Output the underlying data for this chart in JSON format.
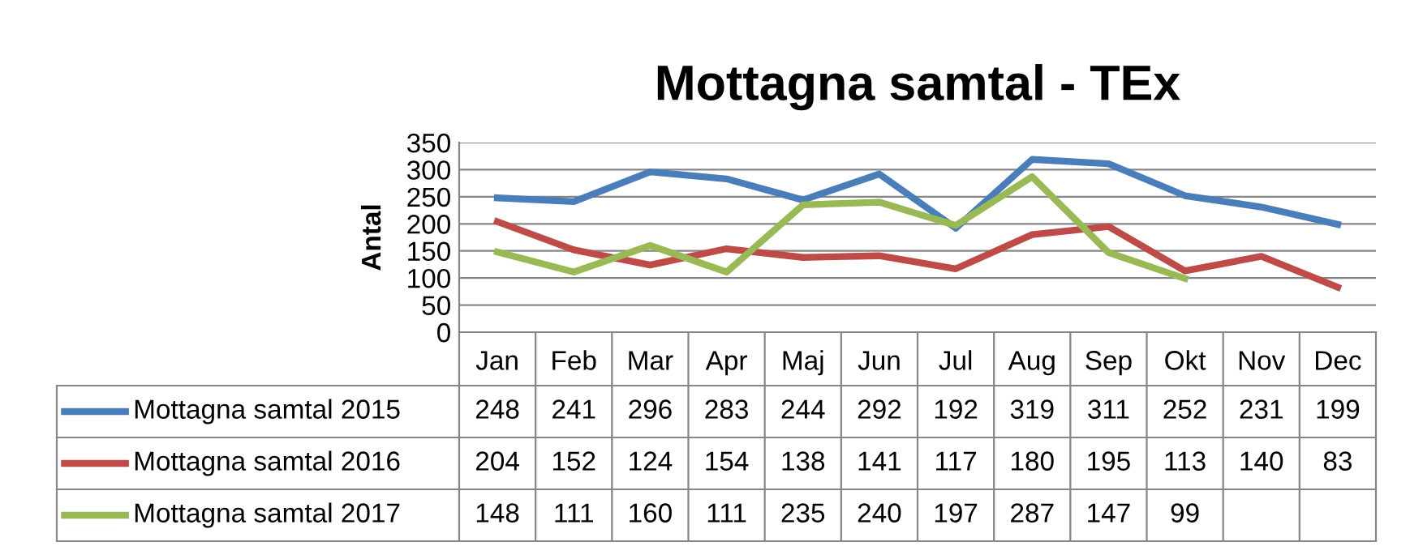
{
  "chart_data": {
    "type": "line",
    "title": "Mottagna samtal - TEx",
    "ylabel": "Antal",
    "categories": [
      "Jan",
      "Feb",
      "Mar",
      "Apr",
      "Maj",
      "Jun",
      "Jul",
      "Aug",
      "Sep",
      "Okt",
      "Nov",
      "Dec"
    ],
    "series": [
      {
        "name": "Mottagna samtal 2015",
        "color": "#4a7ebb",
        "values": [
          248,
          241,
          296,
          283,
          244,
          292,
          192,
          319,
          311,
          252,
          231,
          199
        ]
      },
      {
        "name": "Mottagna samtal 2016",
        "color": "#be4b48",
        "values": [
          204,
          152,
          124,
          154,
          138,
          141,
          117,
          180,
          195,
          113,
          140,
          83
        ]
      },
      {
        "name": "Mottagna samtal 2017",
        "color": "#98b954",
        "values": [
          148,
          111,
          160,
          111,
          235,
          240,
          197,
          287,
          147,
          99,
          null,
          null
        ]
      }
    ],
    "ylim": [
      0,
      350
    ],
    "yticks": [
      0,
      50,
      100,
      150,
      200,
      250,
      300,
      350
    ],
    "grid": "y",
    "legend": "bottom left",
    "data_labels": true,
    "marker": "none",
    "line_style": "solid"
  }
}
